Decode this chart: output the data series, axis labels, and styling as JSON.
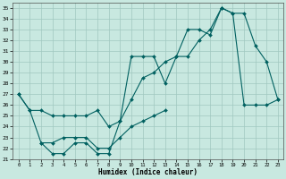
{
  "xlabel": "Humidex (Indice chaleur)",
  "xlim": [
    -0.5,
    23.5
  ],
  "ylim": [
    21,
    35.5
  ],
  "yticks": [
    21,
    22,
    23,
    24,
    25,
    26,
    27,
    28,
    29,
    30,
    31,
    32,
    33,
    34,
    35
  ],
  "xticks": [
    0,
    1,
    2,
    3,
    4,
    5,
    6,
    7,
    8,
    9,
    10,
    11,
    12,
    13,
    14,
    15,
    16,
    17,
    18,
    19,
    20,
    21,
    22,
    23
  ],
  "background_color": "#c8e8e0",
  "grid_color": "#a0c8c0",
  "line_color": "#006060",
  "line1_x": [
    0,
    1,
    2,
    3,
    4,
    5,
    6,
    7,
    8,
    9,
    10,
    11,
    12,
    13,
    14,
    15,
    16,
    17,
    18,
    19,
    20,
    21,
    22,
    23
  ],
  "line1_y": [
    27,
    25.5,
    22.5,
    21.5,
    21.5,
    22.5,
    22.5,
    21.5,
    21.5,
    24.5,
    30.5,
    30.5,
    30.5,
    28.0,
    30.5,
    33.0,
    33.0,
    32.5,
    35.0,
    34.5,
    34.5,
    31.5,
    30.0,
    26.5
  ],
  "line2_x": [
    0,
    1,
    2,
    3,
    4,
    5,
    6,
    7,
    8,
    9,
    10,
    11,
    12,
    13,
    14,
    15,
    16,
    17,
    18,
    19,
    20,
    21,
    22,
    23
  ],
  "line2_y": [
    27,
    25.5,
    25.5,
    25.0,
    25.0,
    25.0,
    25.0,
    25.5,
    24.0,
    24.5,
    26.5,
    28.5,
    29.0,
    30.0,
    30.5,
    30.5,
    32.0,
    33.0,
    35.0,
    34.5,
    26.0,
    26.0,
    26.0,
    26.5
  ],
  "line3_x": [
    2,
    3,
    4,
    5,
    6,
    7,
    8,
    9,
    10,
    11,
    12,
    13
  ],
  "line3_y": [
    22.5,
    22.5,
    23.0,
    23.0,
    23.0,
    22.0,
    22.0,
    23.0,
    24.0,
    24.5,
    25.0,
    25.5
  ]
}
